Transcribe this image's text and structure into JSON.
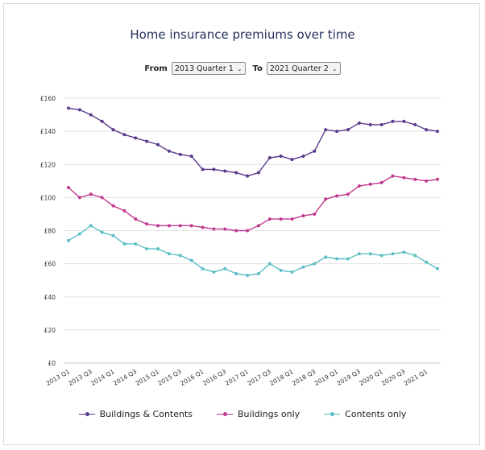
{
  "title": "Home insurance premiums over time",
  "controls": {
    "from_label": "From",
    "from_value": "2013 Quarter 1",
    "to_label": "To",
    "to_value": "2021 Quarter 2"
  },
  "colors": {
    "buildings_contents": "#5b3a8e",
    "buildings_only": "#c2398f",
    "contents_only": "#5bbfc4",
    "grid": "#e3e3e3"
  },
  "chart_data": {
    "type": "line",
    "title": "Home insurance premiums over time",
    "xlabel": "",
    "ylabel": "",
    "ylim": [
      0,
      160
    ],
    "yticks": [
      "£0",
      "£20",
      "£40",
      "£60",
      "£80",
      "£100",
      "£120",
      "£140",
      "£160"
    ],
    "ytick_values": [
      0,
      20,
      40,
      60,
      80,
      100,
      120,
      140,
      160
    ],
    "x": [
      "2013 Q1",
      "2013 Q2",
      "2013 Q3",
      "2013 Q4",
      "2014 Q1",
      "2014 Q2",
      "2014 Q3",
      "2014 Q4",
      "2015 Q1",
      "2015 Q2",
      "2015 Q3",
      "2015 Q4",
      "2016 Q1",
      "2016 Q2",
      "2016 Q3",
      "2016 Q4",
      "2017 Q1",
      "2017 Q2",
      "2017 Q3",
      "2017 Q4",
      "2018 Q1",
      "2018 Q2",
      "2018 Q3",
      "2018 Q4",
      "2019 Q1",
      "2019 Q2",
      "2019 Q3",
      "2019 Q4",
      "2020 Q1",
      "2020 Q2",
      "2020 Q3",
      "2020 Q4",
      "2021 Q1",
      "2021 Q2"
    ],
    "xtick_labels": [
      "2013 Q1",
      "2013 Q3",
      "2014 Q1",
      "2014 Q3",
      "2015 Q1",
      "2015 Q3",
      "2016 Q1",
      "2016 Q3",
      "2017 Q1",
      "2017 Q3",
      "2018 Q1",
      "2018 Q3",
      "2019 Q1",
      "2019 Q3",
      "2020 Q1",
      "2020 Q3",
      "2021 Q1"
    ],
    "grid": true,
    "legend": "bottom",
    "series": [
      {
        "name": "Buildings & Contents",
        "color": "#5b3a8e",
        "values": [
          154,
          153,
          150,
          146,
          141,
          138,
          136,
          134,
          132,
          128,
          126,
          125,
          117,
          117,
          116,
          115,
          113,
          115,
          124,
          125,
          123,
          125,
          128,
          141,
          140,
          141,
          145,
          144,
          144,
          146,
          146,
          144,
          141,
          140
        ]
      },
      {
        "name": "Buildings only",
        "color": "#c2398f",
        "values": [
          106,
          100,
          102,
          100,
          95,
          92,
          87,
          84,
          83,
          83,
          83,
          83,
          82,
          81,
          81,
          80,
          80,
          83,
          87,
          87,
          87,
          89,
          90,
          99,
          101,
          102,
          107,
          108,
          109,
          113,
          112,
          111,
          110,
          111
        ]
      },
      {
        "name": "Contents only",
        "color": "#5bbfc4",
        "values": [
          74,
          78,
          83,
          79,
          77,
          72,
          72,
          69,
          69,
          66,
          65,
          62,
          57,
          55,
          57,
          54,
          53,
          54,
          60,
          56,
          55,
          58,
          60,
          64,
          63,
          63,
          66,
          66,
          65,
          66,
          67,
          65,
          61,
          57
        ]
      }
    ]
  }
}
